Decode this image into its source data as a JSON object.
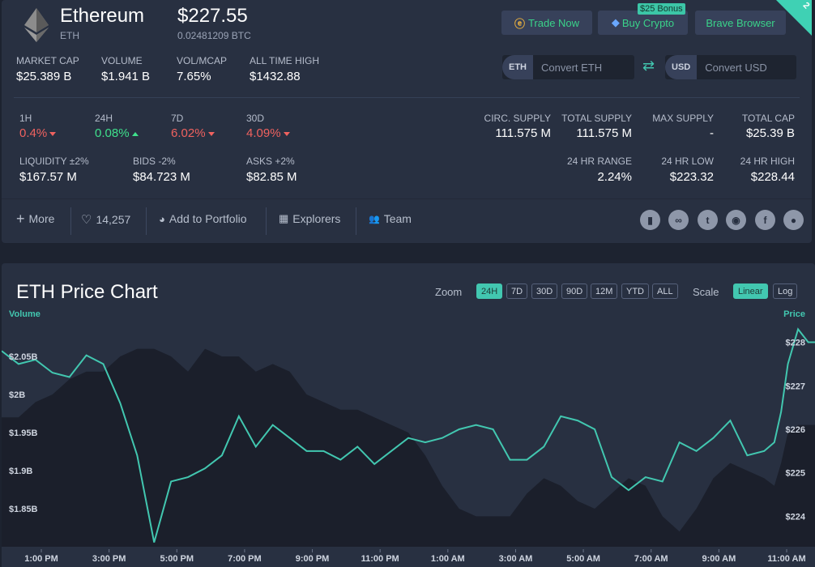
{
  "coin": {
    "name": "Ethereum",
    "symbol": "ETH",
    "price": "$227.55",
    "price_btc": "0.02481209 BTC"
  },
  "header_buttons": {
    "trade": "Trade Now",
    "buy": "Buy Crypto",
    "buy_badge": "$25 Bonus",
    "brave": "Brave Browser",
    "corner": "2"
  },
  "converter": {
    "eth_tag": "ETH",
    "eth_placeholder": "Convert ETH",
    "usd_tag": "USD",
    "usd_placeholder": "Convert USD"
  },
  "stats_row1": [
    {
      "label": "MARKET CAP",
      "value": "$25.389 B"
    },
    {
      "label": "VOLUME",
      "value": "$1.941 B"
    },
    {
      "label": "VOL/MCAP",
      "value": "7.65%"
    },
    {
      "label": "ALL TIME HIGH",
      "value": "$1432.88"
    }
  ],
  "changes": [
    {
      "label": "1H",
      "value": "0.4%",
      "dir": "down"
    },
    {
      "label": "24H",
      "value": "0.08%",
      "dir": "up"
    },
    {
      "label": "7D",
      "value": "6.02%",
      "dir": "down"
    },
    {
      "label": "30D",
      "value": "4.09%",
      "dir": "down"
    }
  ],
  "liquidity": [
    {
      "label": "LIQUIDITY ±2%",
      "value": "$167.57 M"
    },
    {
      "label": "BIDS -2%",
      "value": "$84.723 M"
    },
    {
      "label": "ASKS +2%",
      "value": "$82.85 M"
    }
  ],
  "supply": [
    {
      "label": "CIRC. SUPPLY",
      "value": "111.575 M"
    },
    {
      "label": "TOTAL SUPPLY",
      "value": "111.575 M"
    },
    {
      "label": "MAX SUPPLY",
      "value": "-"
    },
    {
      "label": "TOTAL CAP",
      "value": "$25.39 B"
    }
  ],
  "range": [
    {
      "label": "24 HR RANGE",
      "value": "2.24%"
    },
    {
      "label": "24 HR LOW",
      "value": "$223.32"
    },
    {
      "label": "24 HR HIGH",
      "value": "$228.44"
    }
  ],
  "actions": {
    "more": "More",
    "likes": "14,257",
    "portfolio": "Add to Portfolio",
    "explorers": "Explorers",
    "team": "Team"
  },
  "social_icons": [
    "book-icon",
    "link-icon",
    "twitter-icon",
    "reddit-icon",
    "facebook-icon",
    "github-icon"
  ],
  "chart": {
    "title": "ETH Price Chart",
    "zoom_label": "Zoom",
    "zoom_options": [
      "24H",
      "7D",
      "30D",
      "90D",
      "12M",
      "YTD",
      "ALL"
    ],
    "zoom_active": "24H",
    "scale_label": "Scale",
    "scale_options": [
      "Linear",
      "Log"
    ],
    "scale_active": "Linear",
    "left_axis_title": "Volume",
    "right_axis_title": "Price",
    "accent": "#42c7b0"
  },
  "chart_data": {
    "type": "line",
    "title": "ETH Price Chart",
    "x_labels": [
      "1:00 PM",
      "3:00 PM",
      "5:00 PM",
      "7:00 PM",
      "9:00 PM",
      "11:00 PM",
      "1:00 AM",
      "3:00 AM",
      "5:00 AM",
      "7:00 AM",
      "9:00 AM",
      "11:00 AM"
    ],
    "volume_ticks": [
      "$2.05B",
      "$2B",
      "$1.95B",
      "$1.9B",
      "$1.85B"
    ],
    "volume_tick_values": [
      2.05,
      2.0,
      1.95,
      1.9,
      1.85
    ],
    "price_ticks": [
      "$228",
      "$227",
      "$226",
      "$225",
      "$224"
    ],
    "price_tick_values": [
      228,
      227,
      226,
      225,
      224
    ],
    "volume_range": [
      1.8,
      2.1
    ],
    "price_range": [
      223.3,
      228.55
    ],
    "x": [
      0,
      0.5,
      1,
      1.5,
      2,
      2.5,
      3,
      3.5,
      4,
      4.5,
      5,
      5.5,
      6,
      6.5,
      7,
      7.5,
      8,
      8.5,
      9,
      9.5,
      10,
      10.5,
      11,
      11.5,
      12,
      12.5,
      13,
      13.5,
      14,
      14.5,
      15,
      15.5,
      16,
      16.5,
      17,
      17.5,
      18,
      18.5,
      19,
      19.5,
      20,
      20.5,
      21,
      21.5,
      22,
      22.5,
      22.8,
      23,
      23.2,
      23.5,
      23.8
    ],
    "series": [
      {
        "name": "Price",
        "values": [
          227.8,
          227.5,
          227.6,
          227.3,
          227.2,
          227.7,
          227.5,
          226.6,
          225.4,
          223.4,
          224.8,
          224.9,
          225.1,
          225.4,
          226.3,
          225.6,
          226.1,
          225.8,
          225.5,
          225.5,
          225.3,
          225.6,
          225.2,
          225.5,
          225.8,
          225.7,
          225.8,
          226.0,
          226.1,
          226.0,
          225.3,
          225.3,
          225.6,
          226.3,
          226.2,
          226.0,
          224.9,
          224.6,
          224.9,
          224.8,
          225.7,
          225.5,
          225.8,
          226.2,
          225.4,
          225.5,
          225.7,
          226.4,
          227.5,
          228.3,
          228.0
        ]
      },
      {
        "name": "Volume",
        "values": [
          1.97,
          1.97,
          1.99,
          2.0,
          2.02,
          2.03,
          2.03,
          2.05,
          2.06,
          2.06,
          2.05,
          2.03,
          2.06,
          2.05,
          2.05,
          2.03,
          2.04,
          2.03,
          2.0,
          1.99,
          1.98,
          1.98,
          1.97,
          1.96,
          1.95,
          1.92,
          1.88,
          1.85,
          1.84,
          1.84,
          1.84,
          1.87,
          1.89,
          1.88,
          1.86,
          1.85,
          1.87,
          1.89,
          1.88,
          1.84,
          1.82,
          1.85,
          1.89,
          1.91,
          1.9,
          1.89,
          1.88,
          1.91,
          1.95,
          1.96,
          1.96
        ]
      }
    ],
    "xlabel": "",
    "ylabel_left": "Volume",
    "ylabel_right": "Price",
    "grid": false
  }
}
